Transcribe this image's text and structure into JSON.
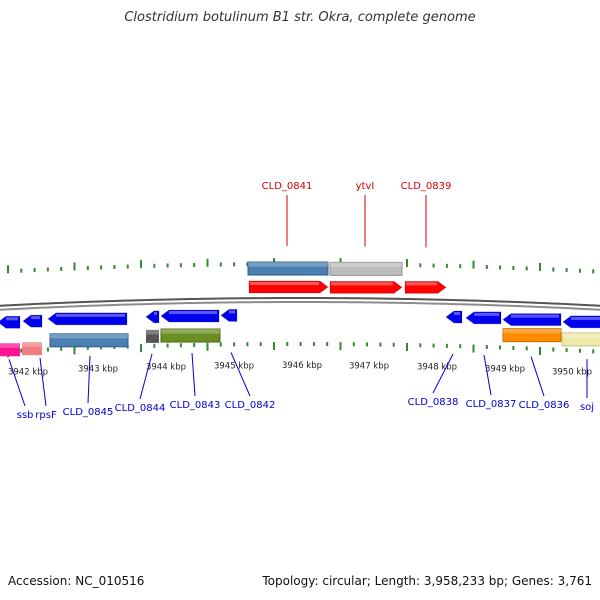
{
  "title": "Clostridium botulinum B1 str. Okra, complete genome",
  "footer": {
    "accession": "Accession: NC_010516",
    "summary": "Topology: circular; Length: 3,958,233 bp; Genes: 3,761"
  },
  "colors": {
    "backbone": "#707070",
    "tick": "#2e8b2e",
    "forward_label": "#d40000",
    "reverse_label": "#0000cc",
    "forward_gene": "#ff0000",
    "reverse_gene": "#0000ee"
  },
  "scale": {
    "unit": "kbp",
    "tick_labels": [
      "3942 kbp",
      "3943 kbp",
      "3944 kbp",
      "3945 kbp",
      "3946 kbp",
      "3947 kbp",
      "3948 kbp",
      "3949 kbp",
      "3950 kbp"
    ]
  },
  "genes_forward": [
    {
      "label": "CLD_0841"
    },
    {
      "label": "ytvI"
    },
    {
      "label": "CLD_0839"
    }
  ],
  "genes_reverse": [
    {
      "label": "ssb"
    },
    {
      "label": "rpsF"
    },
    {
      "label": "CLD_0845"
    },
    {
      "label": "CLD_0844"
    },
    {
      "label": "CLD_0843"
    },
    {
      "label": "CLD_0842"
    },
    {
      "label": "CLD_0838"
    },
    {
      "label": "CLD_0837"
    },
    {
      "label": "CLD_0836"
    },
    {
      "label": "soj"
    }
  ]
}
